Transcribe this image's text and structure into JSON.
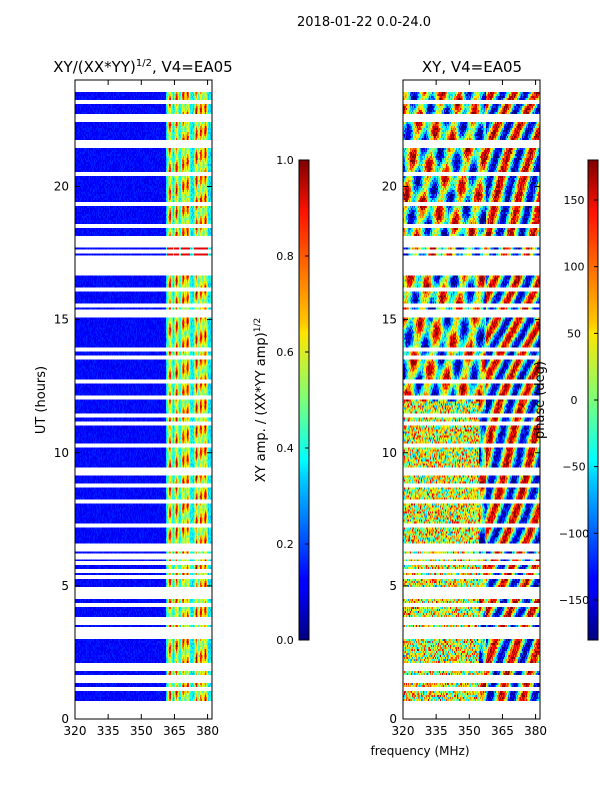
{
  "suptitle": "2018-01-22 0.0-24.0",
  "shared_xlabel": "frequency (MHz)",
  "colors": {
    "white_gap": "#ffffff",
    "background": "#ffffff"
  },
  "chart_data": [
    {
      "type": "heatmap",
      "title_main": "XY/(XX*YY)",
      "title_exp": "1/2",
      "title_tail": ", V4=EA05",
      "xlabel": "",
      "ylabel": "UT (hours)",
      "xlim": [
        320,
        382
      ],
      "ylim": [
        0,
        24
      ],
      "xticks": [
        320,
        335,
        350,
        365,
        380
      ],
      "yticks": [
        0,
        5,
        10,
        15,
        20
      ],
      "colorbar": {
        "label": "XY amp. / (XX*YY amp)",
        "label_exp": "1/2",
        "range": [
          0.0,
          1.0
        ],
        "ticks": [
          "0.0",
          "0.2",
          "0.4",
          "0.6",
          "0.8",
          "1.0"
        ],
        "colormap": "jet"
      },
      "gap_hours": [
        0.0,
        0.1,
        0.2,
        0.3,
        0.4,
        0.5,
        0.6,
        1.15,
        1.4,
        1.6,
        1.85,
        2.05,
        3.05,
        3.2,
        3.4,
        3.6,
        3.75,
        4.3,
        4.55,
        4.7,
        4.9,
        5.3,
        5.55,
        5.85,
        6.05,
        6.1,
        6.15,
        6.4,
        6.5,
        7.3,
        8.2,
        8.75,
        9.25,
        9.4,
        10.3,
        11.1,
        11.4,
        12.1,
        12.65,
        13.6,
        13.9,
        15.15,
        15.3,
        15.5,
        16.1,
        16.75,
        16.8,
        16.9,
        17.05,
        17.2,
        17.35,
        17.55,
        17.75,
        17.9,
        18.05,
        18.5,
        19.35,
        20.5,
        21.5,
        21.65,
        22.5,
        22.65,
        23.2,
        23.6,
        23.75,
        23.9
      ],
      "band_channels_mhz": [
        363,
        366,
        369,
        371,
        375,
        377,
        379
      ],
      "seed": 11
    },
    {
      "type": "heatmap",
      "title_main": "XY, V4=EA05",
      "title_exp": "",
      "title_tail": "",
      "xlabel": "",
      "ylabel": "",
      "xlim": [
        320,
        382
      ],
      "ylim": [
        0,
        24
      ],
      "xticks": [
        320,
        335,
        350,
        365,
        380
      ],
      "yticks": [
        0,
        5,
        10,
        15,
        20
      ],
      "colorbar": {
        "label": "phase (deg)",
        "label_exp": "",
        "range": [
          -180,
          180
        ],
        "ticks": [
          "−150",
          "−100",
          "−50",
          "0",
          "50",
          "100",
          "150"
        ],
        "tick_values": [
          -150,
          -100,
          -50,
          0,
          50,
          100,
          150
        ],
        "colormap": "jet"
      },
      "gap_hours": [
        0.0,
        0.1,
        0.2,
        0.3,
        0.4,
        0.5,
        0.6,
        1.15,
        1.4,
        1.6,
        1.85,
        2.05,
        3.05,
        3.2,
        3.4,
        3.6,
        3.75,
        4.3,
        4.55,
        4.7,
        4.9,
        5.3,
        5.55,
        5.85,
        6.05,
        6.1,
        6.15,
        6.4,
        6.5,
        7.3,
        8.2,
        8.75,
        9.25,
        9.4,
        10.3,
        11.1,
        11.4,
        12.1,
        12.65,
        13.6,
        13.9,
        15.15,
        15.3,
        15.5,
        16.1,
        16.75,
        16.8,
        16.9,
        17.05,
        17.2,
        17.35,
        17.55,
        17.75,
        17.9,
        18.05,
        18.5,
        19.35,
        20.5,
        21.5,
        21.65,
        22.5,
        22.65,
        23.2,
        23.6,
        23.75,
        23.9
      ],
      "seed": 29
    }
  ]
}
